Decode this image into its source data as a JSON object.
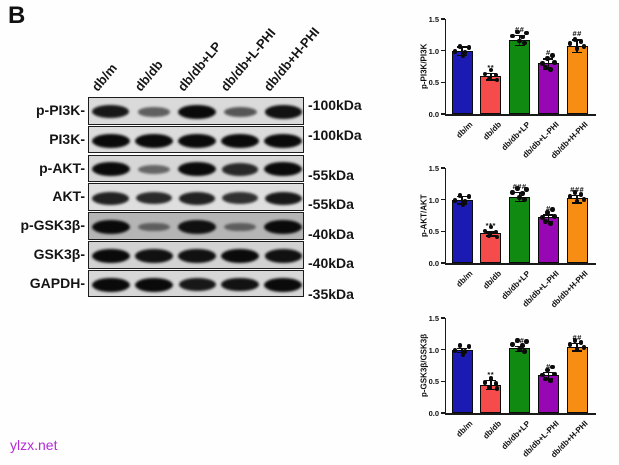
{
  "panel_label": "B",
  "watermark": "ylzx.net",
  "colors": {
    "watermark": "#b42cd4",
    "axis": "#1a1a1a",
    "bar_blue": "#1b1bb4",
    "bar_red": "#f64b4b",
    "bar_green": "#108a10",
    "bar_purple": "#9708b4",
    "bar_orange": "#f88d13"
  },
  "blot": {
    "lane_labels": [
      "db/m",
      "db/db",
      "db/db+LP",
      "db/db+L-PHI",
      "db/db+H-PHI"
    ],
    "rows": [
      {
        "protein": "p-PI3K-",
        "mw": "-100kDa",
        "bg": "#dadada",
        "band_intensities": [
          0.9,
          0.45,
          1.0,
          0.5,
          0.95
        ]
      },
      {
        "protein": "PI3K-",
        "mw": "-100kDa",
        "bg": "#dcdcdc",
        "band_intensities": [
          1.0,
          1.0,
          1.0,
          1.0,
          1.0
        ]
      },
      {
        "protein": "p-AKT-",
        "mw": "-55kDa",
        "bg": "#d6d6d6",
        "band_intensities": [
          1.0,
          0.4,
          1.0,
          0.8,
          1.0
        ]
      },
      {
        "protein": "AKT-",
        "mw": "-55kDa",
        "bg": "#dedede",
        "band_intensities": [
          0.85,
          0.8,
          0.85,
          0.75,
          0.9
        ]
      },
      {
        "protein": "p-GSK3β-",
        "mw": "-40kDa",
        "bg": "#b5b5b5",
        "band_intensities": [
          1.0,
          0.35,
          0.95,
          0.35,
          1.0
        ]
      },
      {
        "protein": "GSK3β-",
        "mw": "-40kDa",
        "bg": "#d2d2d2",
        "band_intensities": [
          1.0,
          0.95,
          0.95,
          1.0,
          0.95
        ]
      },
      {
        "protein": "GAPDH-",
        "mw": "-35kDa",
        "bg": "#d7d7d7",
        "band_intensities": [
          1.0,
          1.0,
          0.9,
          0.95,
          1.0
        ]
      }
    ]
  },
  "chart_data": [
    {
      "type": "bar",
      "ylabel": "p-PI3K/PI3K",
      "xlabel": "",
      "categories": [
        "db/m",
        "db/db",
        "db/db+LP",
        "db/db+L-PHI",
        "db/db+H-PHI"
      ],
      "values": [
        1.0,
        0.6,
        1.17,
        0.8,
        1.08
      ],
      "errors": [
        0.07,
        0.05,
        0.08,
        0.08,
        0.1
      ],
      "significance": [
        "",
        "**",
        "##",
        "#",
        "##"
      ],
      "bar_colors": [
        "#1b1bb4",
        "#f64b4b",
        "#108a10",
        "#9708b4",
        "#f88d13"
      ],
      "yticks": [
        "0.0",
        "0.5",
        "1.0",
        "1.5"
      ],
      "ylim": [
        0,
        1.5
      ],
      "grid": false,
      "legend": null
    },
    {
      "type": "bar",
      "ylabel": "p-AKT/AKT",
      "xlabel": "",
      "categories": [
        "db/m",
        "db/db",
        "db/db+LP",
        "db/db+L-PHI",
        "db/db+H-PHI"
      ],
      "values": [
        1.0,
        0.47,
        1.05,
        0.72,
        1.02
      ],
      "errors": [
        0.06,
        0.03,
        0.07,
        0.05,
        0.06
      ],
      "significance": [
        "",
        "***",
        "###",
        "#",
        "###"
      ],
      "bar_colors": [
        "#1b1bb4",
        "#f64b4b",
        "#108a10",
        "#9708b4",
        "#f88d13"
      ],
      "yticks": [
        "0.0",
        "0.5",
        "1.0",
        "1.5"
      ],
      "ylim": [
        0,
        1.5
      ],
      "grid": false,
      "legend": null
    },
    {
      "type": "bar",
      "ylabel": "p-GSK3β/GSK3β",
      "xlabel": "",
      "categories": [
        "db/m",
        "db/db",
        "db/db+LP",
        "db/db+L-PHI",
        "db/db+H-PHI"
      ],
      "values": [
        1.0,
        0.45,
        1.02,
        0.6,
        1.05
      ],
      "errors": [
        0.03,
        0.07,
        0.04,
        0.05,
        0.06
      ],
      "significance": [
        "",
        "**",
        "##",
        "#",
        "##"
      ],
      "bar_colors": [
        "#1b1bb4",
        "#f64b4b",
        "#108a10",
        "#9708b4",
        "#f88d13"
      ],
      "yticks": [
        "0.0",
        "0.5",
        "1.0",
        "1.5"
      ],
      "ylim": [
        0,
        1.5
      ],
      "grid": false,
      "legend": null
    }
  ]
}
